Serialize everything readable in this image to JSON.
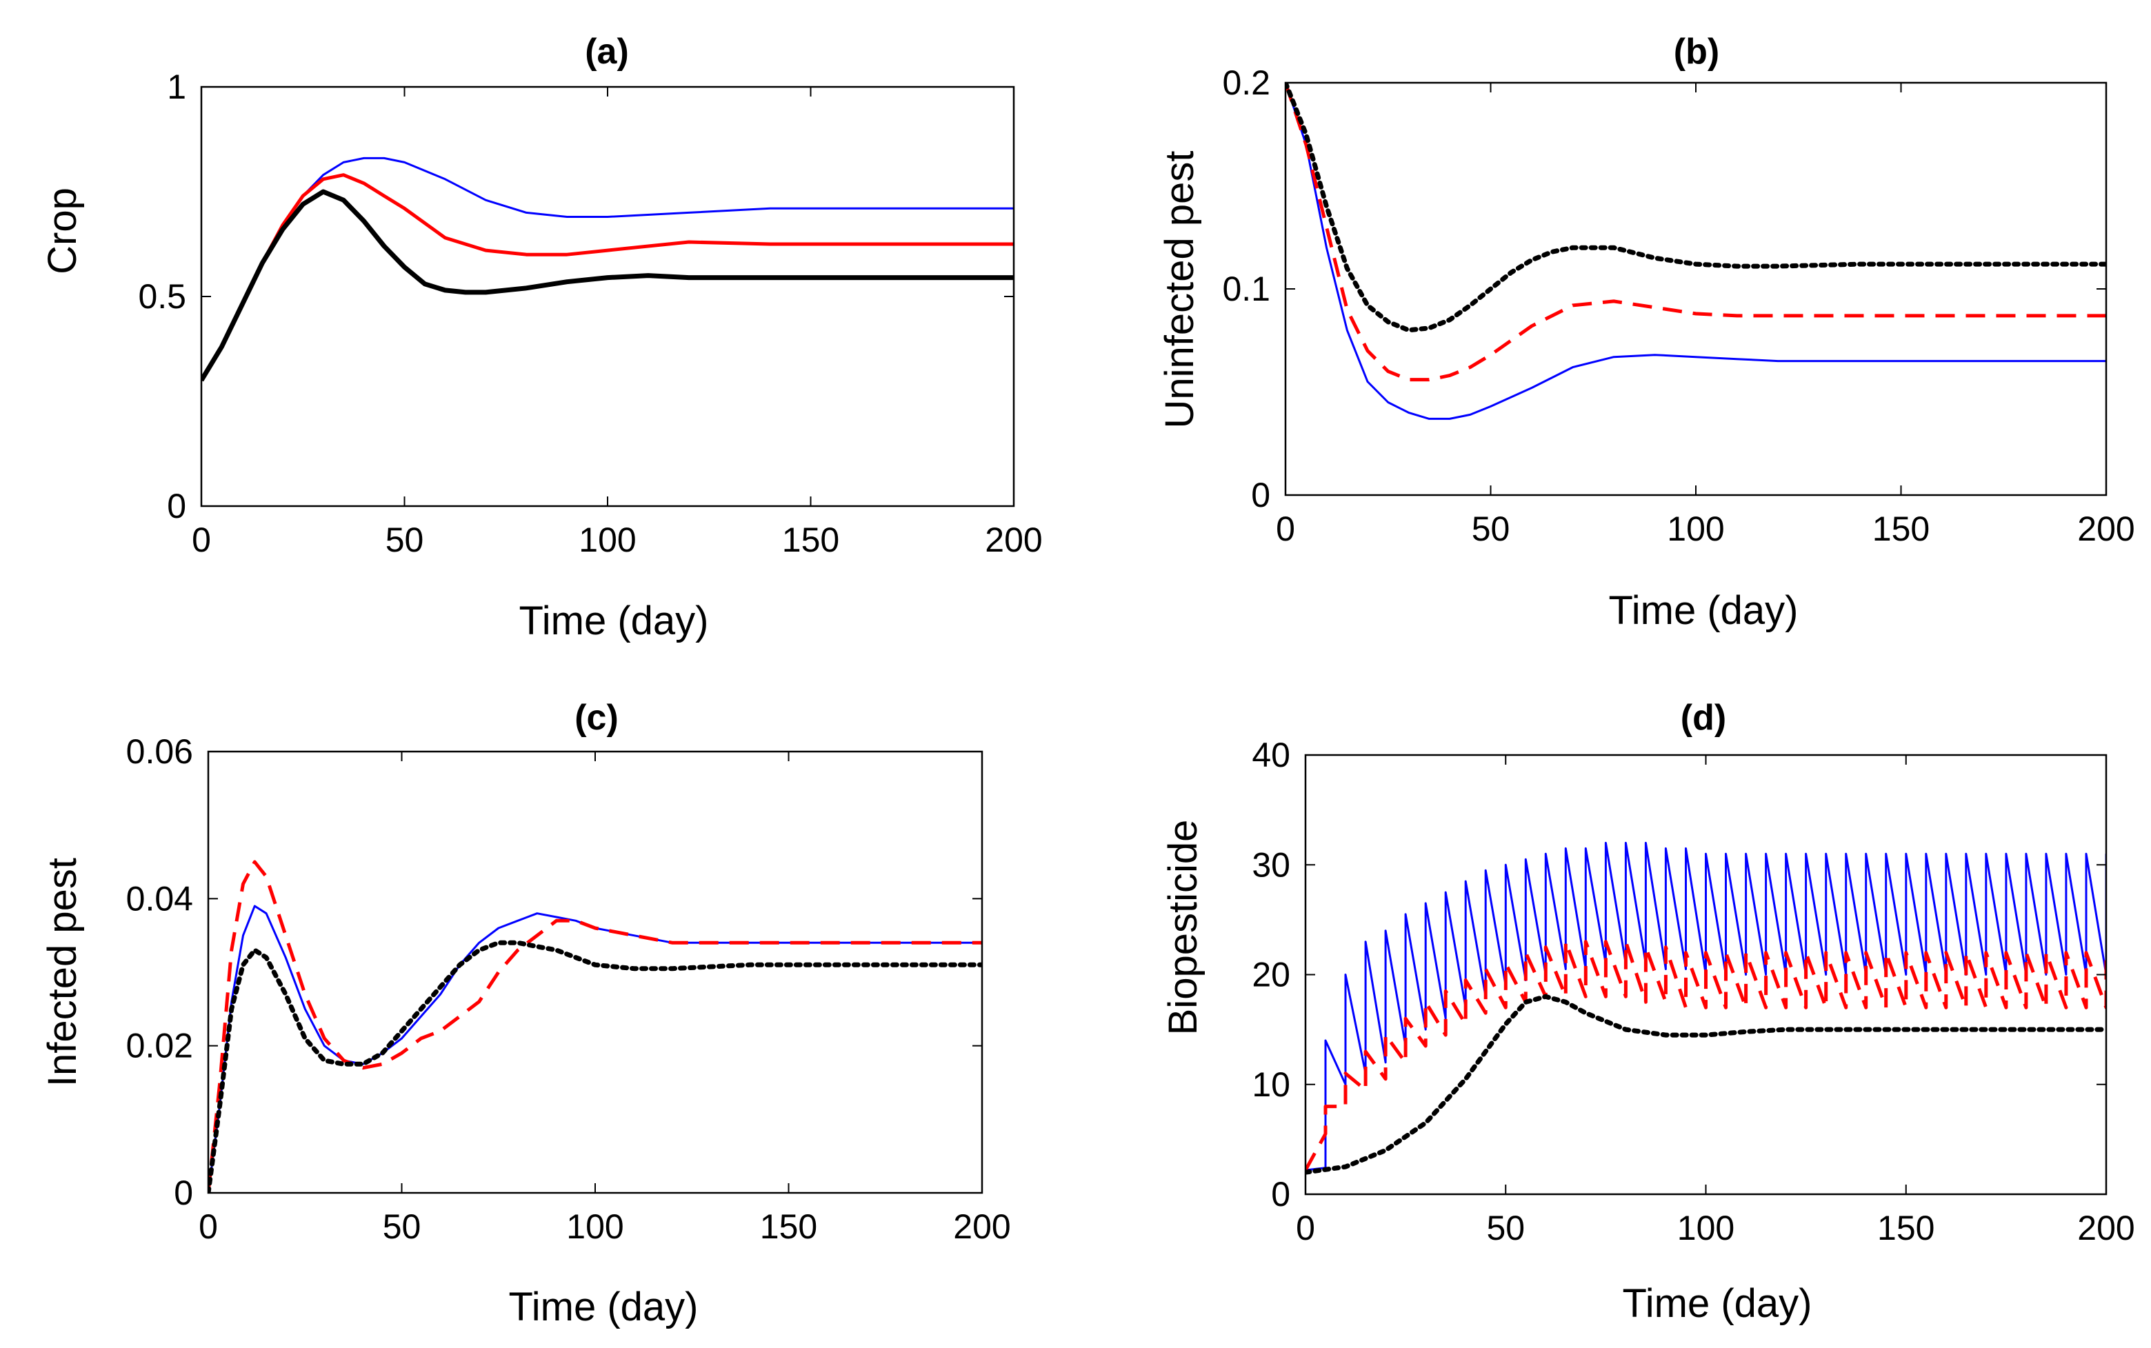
{
  "figure": {
    "colors": {
      "blue": "#0000ff",
      "red": "#ff0000",
      "black": "#000000"
    }
  },
  "chart_data": [
    {
      "type": "line",
      "panel": "(a)",
      "title": "(a)",
      "xlabel": "Time (day)",
      "ylabel": "Crop",
      "xlim": [
        0,
        200
      ],
      "ylim": [
        0,
        1
      ],
      "xticks": [
        0,
        50,
        100,
        150,
        200
      ],
      "yticks": [
        0,
        0.5,
        1
      ],
      "xtick_labels": [
        "0",
        "50",
        "100",
        "150",
        "200"
      ],
      "ytick_labels": [
        "0",
        "0.5",
        "1"
      ],
      "grid": false,
      "series": [
        {
          "name": "blue",
          "color": "#0000ff",
          "style": "solid",
          "weight": "thin",
          "x": [
            0,
            5,
            10,
            15,
            20,
            25,
            30,
            35,
            40,
            45,
            50,
            60,
            70,
            80,
            90,
            100,
            120,
            140,
            160,
            200
          ],
          "y": [
            0.3,
            0.38,
            0.48,
            0.58,
            0.67,
            0.74,
            0.79,
            0.82,
            0.83,
            0.83,
            0.82,
            0.78,
            0.73,
            0.7,
            0.69,
            0.69,
            0.7,
            0.71,
            0.71,
            0.71
          ]
        },
        {
          "name": "red",
          "color": "#ff0000",
          "style": "solid",
          "weight": "medium",
          "x": [
            0,
            5,
            10,
            15,
            20,
            25,
            30,
            35,
            40,
            45,
            50,
            60,
            70,
            80,
            90,
            100,
            110,
            120,
            140,
            160,
            200
          ],
          "y": [
            0.3,
            0.38,
            0.48,
            0.58,
            0.67,
            0.74,
            0.78,
            0.79,
            0.77,
            0.74,
            0.71,
            0.64,
            0.61,
            0.6,
            0.6,
            0.61,
            0.62,
            0.63,
            0.625,
            0.625,
            0.625
          ]
        },
        {
          "name": "black",
          "color": "#000000",
          "style": "solid",
          "weight": "thick",
          "x": [
            0,
            5,
            10,
            15,
            20,
            25,
            30,
            35,
            40,
            45,
            50,
            55,
            60,
            65,
            70,
            80,
            90,
            100,
            110,
            120,
            140,
            160,
            200
          ],
          "y": [
            0.3,
            0.38,
            0.48,
            0.58,
            0.66,
            0.72,
            0.75,
            0.73,
            0.68,
            0.62,
            0.57,
            0.53,
            0.515,
            0.51,
            0.51,
            0.52,
            0.535,
            0.545,
            0.55,
            0.545,
            0.545,
            0.545,
            0.545
          ]
        }
      ]
    },
    {
      "type": "line",
      "panel": "(b)",
      "title": "(b)",
      "xlabel": "Time (day)",
      "ylabel": "Uninfected pest",
      "xlim": [
        0,
        200
      ],
      "ylim": [
        0,
        0.2
      ],
      "xticks": [
        0,
        50,
        100,
        150,
        200
      ],
      "yticks": [
        0,
        0.1,
        0.2
      ],
      "xtick_labels": [
        "0",
        "50",
        "100",
        "150",
        "200"
      ],
      "ytick_labels": [
        "0",
        "0.1",
        "0.2"
      ],
      "grid": false,
      "series": [
        {
          "name": "blue",
          "color": "#0000ff",
          "style": "solid",
          "weight": "thin",
          "x": [
            0,
            5,
            10,
            15,
            20,
            25,
            30,
            35,
            40,
            45,
            50,
            60,
            70,
            80,
            90,
            100,
            110,
            120,
            140,
            160,
            200
          ],
          "y": [
            0.2,
            0.17,
            0.12,
            0.08,
            0.055,
            0.045,
            0.04,
            0.037,
            0.037,
            0.039,
            0.043,
            0.052,
            0.062,
            0.067,
            0.068,
            0.067,
            0.066,
            0.065,
            0.065,
            0.065,
            0.065
          ]
        },
        {
          "name": "red",
          "color": "#ff0000",
          "style": "dashed",
          "weight": "medium",
          "x": [
            0,
            5,
            10,
            15,
            20,
            25,
            30,
            35,
            40,
            45,
            50,
            60,
            70,
            80,
            90,
            100,
            110,
            120,
            140,
            160,
            200
          ],
          "y": [
            0.2,
            0.17,
            0.13,
            0.09,
            0.07,
            0.06,
            0.056,
            0.056,
            0.058,
            0.062,
            0.068,
            0.082,
            0.092,
            0.094,
            0.091,
            0.088,
            0.087,
            0.087,
            0.087,
            0.087,
            0.087
          ]
        },
        {
          "name": "black",
          "color": "#000000",
          "style": "dotted",
          "weight": "thick",
          "x": [
            0,
            5,
            10,
            15,
            20,
            25,
            30,
            35,
            40,
            45,
            50,
            55,
            60,
            65,
            70,
            80,
            90,
            100,
            110,
            120,
            140,
            160,
            200
          ],
          "y": [
            0.2,
            0.175,
            0.14,
            0.11,
            0.092,
            0.084,
            0.08,
            0.081,
            0.085,
            0.092,
            0.1,
            0.108,
            0.114,
            0.118,
            0.12,
            0.12,
            0.115,
            0.112,
            0.111,
            0.111,
            0.112,
            0.112,
            0.112
          ]
        }
      ]
    },
    {
      "type": "line",
      "panel": "(c)",
      "title": "(c)",
      "xlabel": "Time (day)",
      "ylabel": "Infected pest",
      "xlim": [
        0,
        200
      ],
      "ylim": [
        0,
        0.06
      ],
      "xticks": [
        0,
        50,
        100,
        150,
        200
      ],
      "yticks": [
        0,
        0.02,
        0.04,
        0.06
      ],
      "xtick_labels": [
        "0",
        "50",
        "100",
        "150",
        "200"
      ],
      "ytick_labels": [
        "0",
        "0.02",
        "0.04",
        "0.06"
      ],
      "grid": false,
      "series": [
        {
          "name": "blue",
          "color": "#0000ff",
          "style": "solid",
          "weight": "thin",
          "x": [
            0,
            3,
            6,
            9,
            12,
            15,
            20,
            25,
            30,
            35,
            40,
            45,
            50,
            55,
            60,
            65,
            70,
            75,
            80,
            85,
            90,
            95,
            100,
            110,
            120,
            140,
            160,
            200
          ],
          "y": [
            0,
            0.012,
            0.026,
            0.035,
            0.039,
            0.038,
            0.032,
            0.025,
            0.02,
            0.018,
            0.0175,
            0.019,
            0.021,
            0.024,
            0.027,
            0.031,
            0.034,
            0.036,
            0.037,
            0.038,
            0.0375,
            0.037,
            0.036,
            0.035,
            0.034,
            0.034,
            0.034,
            0.034
          ]
        },
        {
          "name": "red",
          "color": "#ff0000",
          "style": "dashed",
          "weight": "medium",
          "x": [
            0,
            3,
            6,
            9,
            12,
            15,
            20,
            25,
            30,
            35,
            40,
            45,
            50,
            55,
            60,
            65,
            70,
            75,
            80,
            85,
            90,
            95,
            100,
            110,
            120,
            140,
            160,
            200
          ],
          "y": [
            0,
            0.015,
            0.033,
            0.042,
            0.045,
            0.043,
            0.035,
            0.027,
            0.021,
            0.018,
            0.017,
            0.0175,
            0.019,
            0.021,
            0.022,
            0.024,
            0.026,
            0.03,
            0.033,
            0.035,
            0.037,
            0.037,
            0.036,
            0.035,
            0.034,
            0.034,
            0.034,
            0.034
          ]
        },
        {
          "name": "black",
          "color": "#000000",
          "style": "dotted",
          "weight": "thick",
          "x": [
            0,
            3,
            6,
            9,
            12,
            15,
            20,
            25,
            30,
            35,
            40,
            45,
            50,
            55,
            60,
            65,
            70,
            75,
            80,
            85,
            90,
            100,
            110,
            120,
            140,
            160,
            200
          ],
          "y": [
            0,
            0.012,
            0.025,
            0.031,
            0.033,
            0.032,
            0.027,
            0.021,
            0.018,
            0.0175,
            0.0175,
            0.019,
            0.022,
            0.025,
            0.028,
            0.031,
            0.033,
            0.034,
            0.034,
            0.0335,
            0.033,
            0.031,
            0.0305,
            0.0305,
            0.031,
            0.031,
            0.031
          ]
        }
      ]
    },
    {
      "type": "line",
      "panel": "(d)",
      "title": "(d)",
      "xlabel": "Time (day)",
      "ylabel": "Biopesticide",
      "xlim": [
        0,
        200
      ],
      "ylim": [
        0,
        40
      ],
      "xticks": [
        0,
        50,
        100,
        150,
        200
      ],
      "yticks": [
        0,
        10,
        20,
        30,
        40
      ],
      "xtick_labels": [
        "0",
        "50",
        "100",
        "150",
        "200"
      ],
      "ytick_labels": [
        "0",
        "10",
        "20",
        "30",
        "40"
      ],
      "grid": false,
      "pulse_period": 5,
      "series": [
        {
          "name": "blue",
          "color": "#0000ff",
          "style": "solid",
          "weight": "thin",
          "pulsed": true,
          "x": [
            0,
            5,
            10,
            15,
            20,
            25,
            30,
            35,
            40,
            45,
            50,
            55,
            60,
            65,
            70,
            75,
            80,
            85,
            90,
            95,
            100,
            105,
            110,
            115,
            120,
            125,
            130,
            135,
            140,
            145,
            150,
            155,
            160,
            165,
            170,
            175,
            180,
            185,
            190,
            195,
            200
          ],
          "peak": [
            2.2,
            14,
            20,
            23,
            24,
            25.5,
            26.5,
            27.5,
            28.5,
            29.5,
            30,
            30.5,
            31,
            31.5,
            31.5,
            32,
            32,
            32,
            31.5,
            31.5,
            31,
            31,
            31,
            31,
            31,
            31,
            31,
            31,
            31,
            31,
            31,
            31,
            31,
            31,
            31,
            31,
            31,
            31,
            31,
            31,
            31
          ],
          "trough": [
            2.2,
            2.4,
            10,
            11,
            12,
            13.5,
            15,
            16,
            17,
            18,
            19,
            19.5,
            20,
            20.5,
            20.5,
            21,
            21,
            21,
            20.5,
            20.5,
            20,
            20,
            20,
            20,
            20,
            20,
            20,
            20,
            20,
            20,
            20,
            20,
            20,
            20,
            20,
            20,
            20,
            20,
            20,
            20,
            20
          ]
        },
        {
          "name": "red",
          "color": "#ff0000",
          "style": "dashed",
          "weight": "medium",
          "pulsed": true,
          "x": [
            0,
            5,
            10,
            15,
            20,
            25,
            30,
            35,
            40,
            45,
            50,
            55,
            60,
            65,
            70,
            75,
            80,
            85,
            90,
            95,
            100,
            105,
            110,
            115,
            120,
            125,
            130,
            135,
            140,
            145,
            150,
            155,
            160,
            165,
            170,
            175,
            180,
            185,
            190,
            195,
            200
          ],
          "peak": [
            2.2,
            8,
            11,
            13,
            14.5,
            16,
            17.5,
            18.5,
            19.5,
            20.5,
            21,
            22,
            22.5,
            23,
            23,
            23,
            23,
            22.5,
            22.5,
            22,
            22,
            22,
            22,
            22,
            22,
            22,
            22,
            22,
            22,
            22,
            22,
            22,
            22,
            22,
            22,
            22,
            22,
            22,
            22,
            22,
            22
          ],
          "trough": [
            2.2,
            5.5,
            8,
            9.5,
            10.5,
            12,
            13.5,
            14.5,
            15.5,
            16.5,
            17,
            17.5,
            18,
            18,
            18,
            18,
            18,
            17.5,
            17.5,
            17,
            17,
            17,
            17,
            17,
            17,
            17,
            17,
            17,
            17,
            17,
            17,
            17,
            17,
            17,
            17,
            17,
            17,
            17,
            17,
            17,
            17
          ]
        },
        {
          "name": "black",
          "color": "#000000",
          "style": "dotted",
          "weight": "thick",
          "x": [
            0,
            10,
            20,
            30,
            40,
            50,
            55,
            60,
            65,
            70,
            80,
            90,
            100,
            110,
            120,
            140,
            160,
            200
          ],
          "y": [
            2,
            2.5,
            4,
            6.5,
            10.5,
            15.5,
            17.5,
            18,
            17.5,
            16.5,
            15,
            14.5,
            14.5,
            14.8,
            15,
            15,
            15,
            15
          ]
        }
      ]
    }
  ]
}
